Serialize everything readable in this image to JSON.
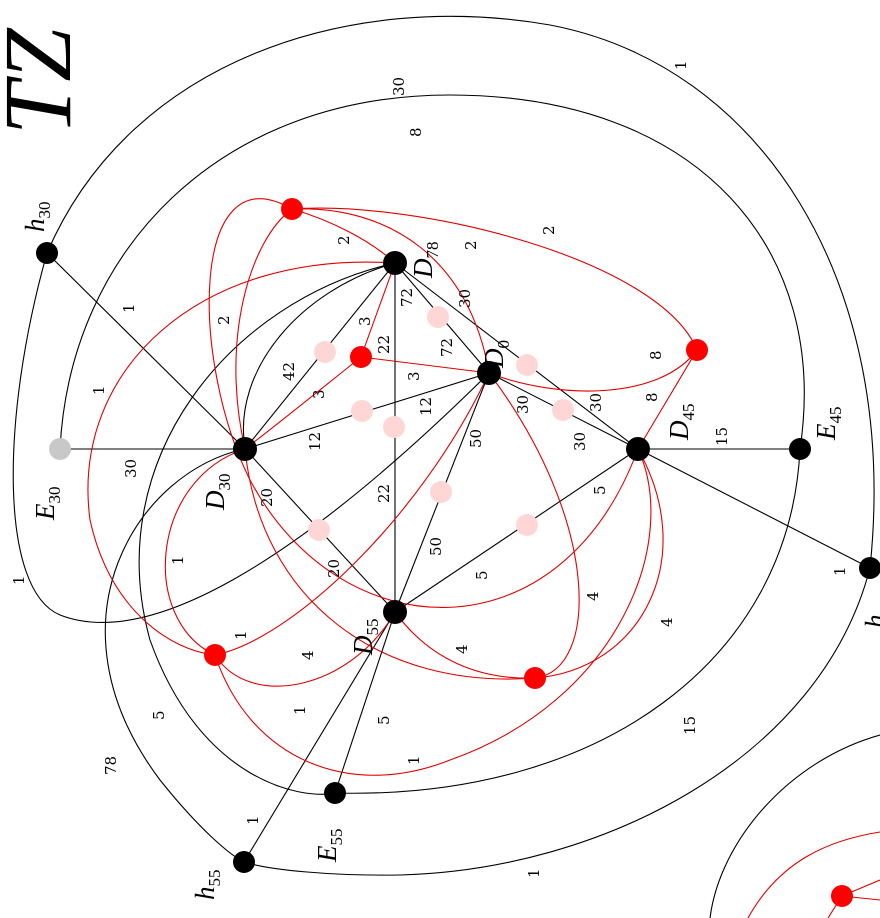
{
  "title": "TZ",
  "vertices": {
    "D0": {
      "name": "D",
      "sub": "0"
    },
    "D30": {
      "name": "D",
      "sub": "30"
    },
    "D45": {
      "name": "D",
      "sub": "45"
    },
    "D55": {
      "name": "D",
      "sub": "55"
    },
    "D78": {
      "name": "D",
      "sub": "78"
    },
    "E30": {
      "name": "E",
      "sub": "30"
    },
    "E45": {
      "name": "E",
      "sub": "45"
    },
    "E55": {
      "name": "E",
      "sub": "55"
    },
    "h30": {
      "name": "h",
      "sub": "30"
    },
    "h55": {
      "name": "h",
      "sub": "55"
    },
    "cut_label": {
      "name": "h"
    }
  },
  "edge_labels": {
    "d78_d0_72": "72",
    "d78_d0_30": "30",
    "d0_72b": "72",
    "d78_3": "3",
    "d78_22": "22",
    "d78_3b": "3",
    "d78_2": "2",
    "d78_2b": "2",
    "d30_42": "42",
    "d30_3": "3",
    "d30_12": "12",
    "d30_12b": "12",
    "d30_20": "20",
    "d30_20b": "20",
    "d30_22": "22",
    "d30_2": "2",
    "d0_50": "50",
    "d0_50b": "50",
    "d0_30": "30",
    "d0_30b": "30",
    "d0_30c": "30",
    "d45_8": "8",
    "d45_8b": "8",
    "d45_15": "15",
    "d45_5": "5",
    "d45_5b": "5",
    "e30_30": "30",
    "h30_1": "1",
    "h30_1b": "1",
    "d55_4": "4",
    "d55_4b": "4",
    "d55_4c": "4",
    "d55_4d": "4",
    "d55_1": "1",
    "d55_1b": "1",
    "d55_1c": "1",
    "d55_5": "5",
    "red_1": "1",
    "red_1b": "1",
    "outer_1": "1",
    "outer_30": "30",
    "outer_8": "8",
    "outer_2": "2",
    "outer_1b": "1",
    "outer_78": "78",
    "outer_5": "5",
    "outer_15": "15",
    "outer_1c": "1",
    "outer_1d": "1",
    "e45_1": "1"
  },
  "colors": {
    "edge": "#000000",
    "red_edge": "#e00000",
    "black_node": "#000000",
    "red_node": "#ff0000",
    "pink_node": "#ffd6d6",
    "gray_node": "#c8c8c8"
  }
}
